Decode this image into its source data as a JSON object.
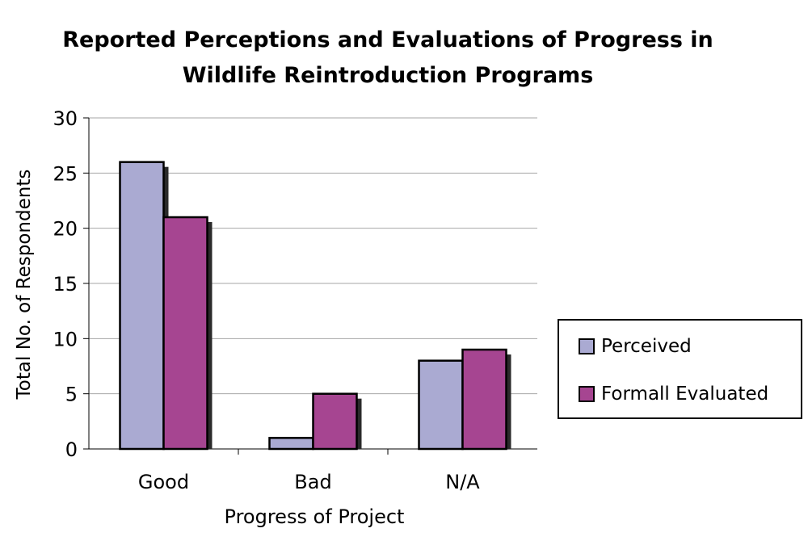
{
  "colors": {
    "perceived": "#aaaad2",
    "formally_evaluated": "#a64591",
    "gridline": "#a6a6a6",
    "shadow": "#2a2a2a"
  },
  "chart_data": {
    "type": "bar",
    "title_lines": [
      "Reported Perceptions and Evaluations of Progress in",
      "Wildlife Reintroduction Programs"
    ],
    "xlabel": "Progress of Project",
    "ylabel": "Total No. of Respondents",
    "categories": [
      "Good",
      "Bad",
      "N/A"
    ],
    "series": [
      {
        "name": "Perceived",
        "values": [
          26,
          1,
          8
        ]
      },
      {
        "name": "Formall Evaluated",
        "values": [
          21,
          5,
          9
        ]
      }
    ],
    "ylim": [
      0,
      30
    ],
    "yticks": [
      "0",
      "5",
      "10",
      "15",
      "20",
      "25",
      "30"
    ],
    "grid": true,
    "legend_position": "right"
  }
}
